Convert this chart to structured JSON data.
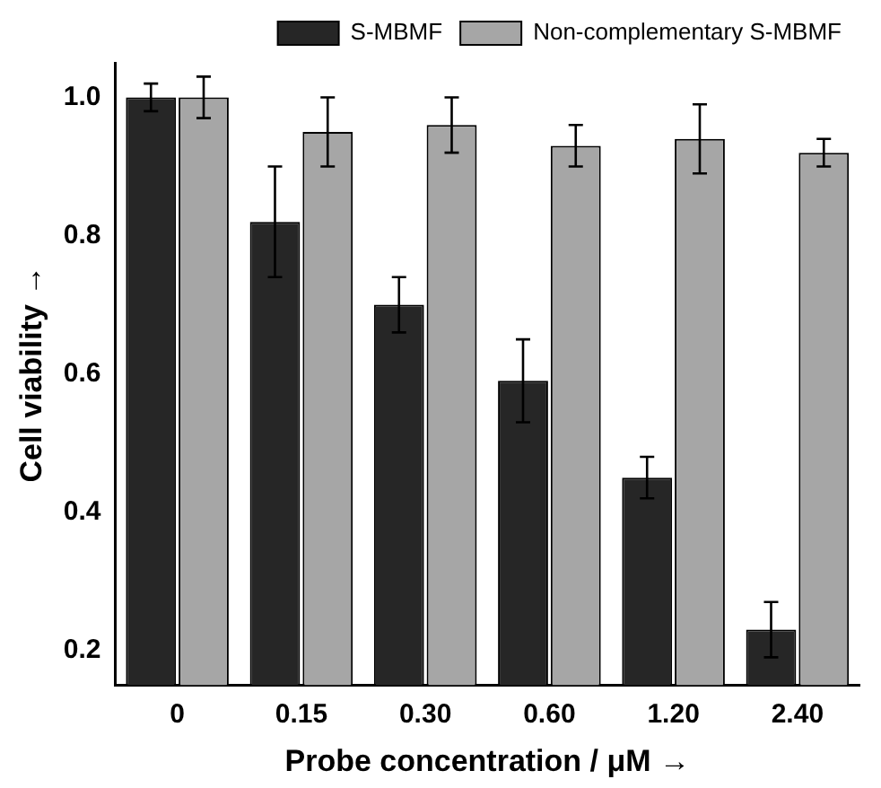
{
  "chart_data": {
    "type": "bar",
    "xlabel": "Probe concentration / μM →",
    "ylabel": "Cell viability →",
    "categories": [
      "0",
      "0.15",
      "0.30",
      "0.60",
      "1.20",
      "2.40"
    ],
    "series": [
      {
        "name": "S-MBMF",
        "color": "#262626",
        "values": [
          1.0,
          0.82,
          0.7,
          0.59,
          0.45,
          0.23
        ],
        "errors": [
          0.02,
          0.08,
          0.04,
          0.06,
          0.03,
          0.04
        ]
      },
      {
        "name": "Non-complementary S-MBMF",
        "color": "#a6a6a6",
        "values": [
          1.0,
          0.95,
          0.96,
          0.93,
          0.94,
          0.92
        ],
        "errors": [
          0.03,
          0.05,
          0.04,
          0.03,
          0.05,
          0.02
        ]
      }
    ],
    "ylim": [
      0.15,
      1.05
    ],
    "yticks": [
      {
        "value": 0.2,
        "label": "0.2"
      },
      {
        "value": 0.4,
        "label": "0.4"
      },
      {
        "value": 0.6,
        "label": "0.6"
      },
      {
        "value": 0.8,
        "label": "0.8"
      },
      {
        "value": 1.0,
        "label": "1.0"
      }
    ],
    "grid": false,
    "legend": "top right"
  }
}
